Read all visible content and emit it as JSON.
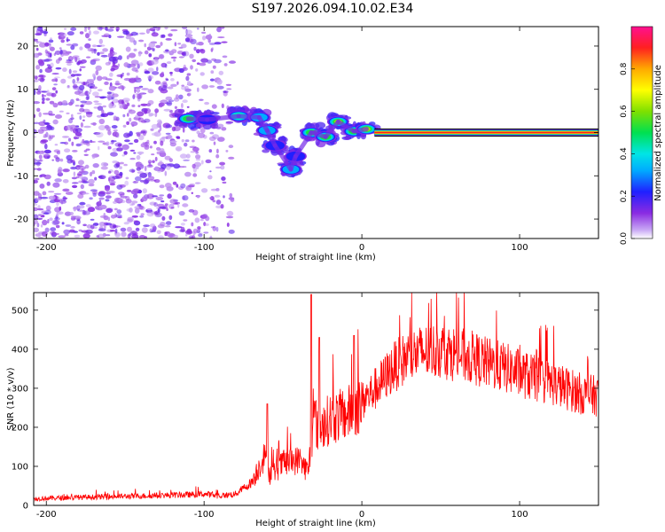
{
  "figure_title": "S197.2026.094.10.02.E34",
  "chart_data": [
    {
      "type": "heatmap",
      "title": "S197.2026.094.10.02.E34",
      "xlabel": "Height of straight line (km)",
      "ylabel": "Frequency (Hz)",
      "xlim": [
        -208,
        150
      ],
      "ylim": [
        -24.5,
        24.5
      ],
      "xticks": [
        -200,
        -100,
        0,
        100
      ],
      "yticks": [
        -20,
        -10,
        0,
        10,
        20
      ],
      "colorbar": {
        "label": "Normalized spectral amplitude",
        "range": [
          0,
          1
        ],
        "ticks": [
          0.0,
          0.2,
          0.4,
          0.6,
          0.8
        ]
      },
      "features": [
        {
          "name": "noise-field",
          "x_range": [
            -208,
            -82
          ],
          "freq_range": [
            -24.5,
            24.5
          ],
          "amplitude": 0.12
        },
        {
          "name": "blob-1",
          "x": -110,
          "freq": 3.2,
          "amplitude": 0.55
        },
        {
          "name": "blob-2",
          "x": -98,
          "freq": 3.0,
          "amplitude": 0.3
        },
        {
          "name": "blob-3",
          "x": -78,
          "freq": 3.8,
          "amplitude": 0.5
        },
        {
          "name": "blob-4",
          "x": -65,
          "freq": 3.5,
          "amplitude": 0.35
        },
        {
          "name": "blob-5",
          "x": -60,
          "freq": 0.5,
          "amplitude": 0.4
        },
        {
          "name": "blob-6",
          "x": -55,
          "freq": -3.0,
          "amplitude": 0.3
        },
        {
          "name": "blob-7",
          "x": -45,
          "freq": -8.5,
          "amplitude": 0.35
        },
        {
          "name": "blob-8",
          "x": -42,
          "freq": -5.5,
          "amplitude": 0.3
        },
        {
          "name": "blob-9",
          "x": -32,
          "freq": 0.0,
          "amplitude": 0.6
        },
        {
          "name": "blob-10",
          "x": -23,
          "freq": -1.0,
          "amplitude": 0.55
        },
        {
          "name": "blob-11",
          "x": -15,
          "freq": 2.5,
          "amplitude": 0.7
        },
        {
          "name": "blob-12",
          "x": -5,
          "freq": 0.3,
          "amplitude": 0.6
        },
        {
          "name": "blob-13",
          "x": 3,
          "freq": 0.8,
          "amplitude": 0.65
        },
        {
          "name": "carrier-line",
          "x_range": [
            8,
            150
          ],
          "freq": 0.0,
          "amplitude": 1.0
        }
      ]
    },
    {
      "type": "line",
      "xlabel": "Height of straight line (km)",
      "ylabel": "SNR (10 * v/v)",
      "xlim": [
        -208,
        150
      ],
      "ylim": [
        0,
        545
      ],
      "xticks": [
        -200,
        -100,
        0,
        100
      ],
      "yticks": [
        0,
        100,
        200,
        300,
        400,
        500
      ],
      "color": "#ff0000",
      "series": [
        {
          "name": "SNR",
          "x": [
            -208,
            -190,
            -170,
            -150,
            -130,
            -110,
            -100,
            -90,
            -80,
            -70,
            -62,
            -58,
            -50,
            -40,
            -34,
            -30,
            -28,
            -20,
            -10,
            0,
            10,
            20,
            30,
            40,
            50,
            60,
            70,
            80,
            90,
            100,
            110,
            120,
            130,
            140,
            150
          ],
          "y": [
            18,
            20,
            22,
            24,
            26,
            28,
            30,
            25,
            30,
            60,
            130,
            80,
            110,
            120,
            90,
            240,
            200,
            230,
            240,
            270,
            310,
            360,
            390,
            400,
            405,
            395,
            385,
            370,
            360,
            345,
            330,
            320,
            305,
            290,
            285
          ]
        }
      ],
      "peaks": [
        {
          "x": -60,
          "y": 260
        },
        {
          "x": -32,
          "y": 540
        },
        {
          "x": -27,
          "y": 430
        },
        {
          "x": -5,
          "y": 435
        }
      ]
    }
  ]
}
